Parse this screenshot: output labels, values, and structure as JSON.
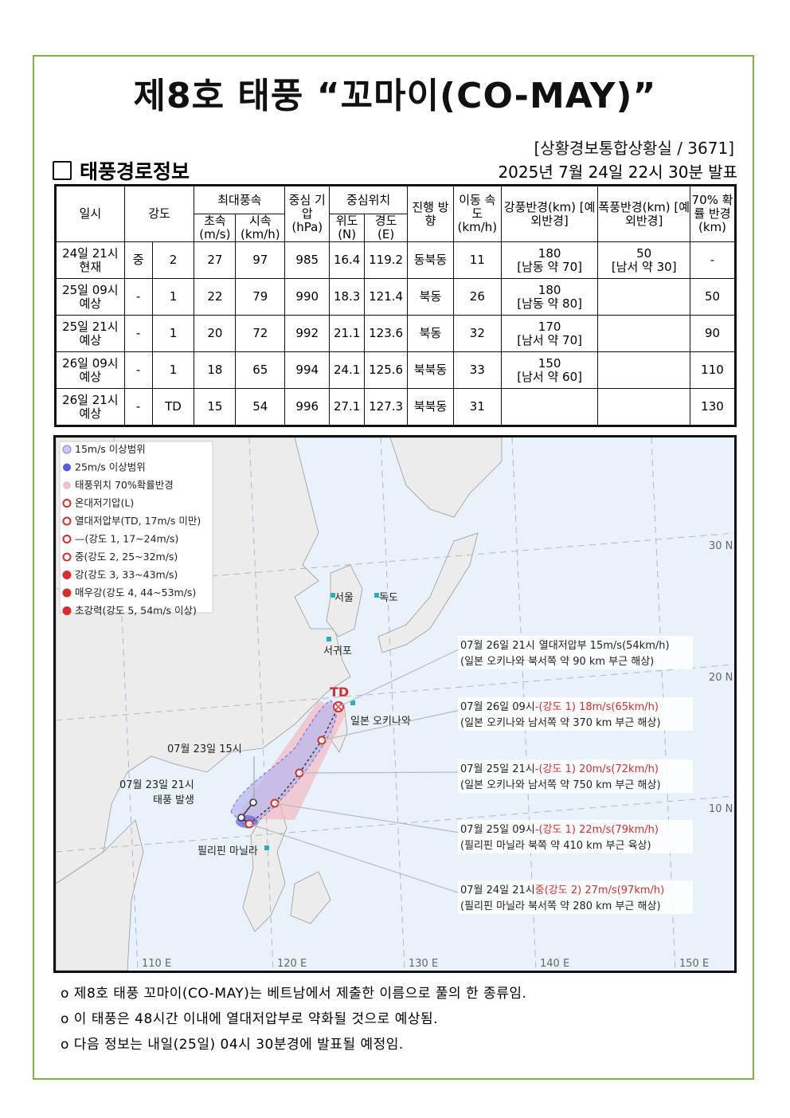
{
  "title": "제8호 태풍 “꼬마이(CO-MAY)”",
  "office": "[상황경보통합상황실 / 3671]",
  "section_title": "태풍경로정보",
  "issued": "2025년 7월 24일 22시 30분 발표",
  "table": {
    "headers": {
      "datetime": "일시",
      "intensity": "강도",
      "max_wind": "최대풍속",
      "wind_ms": "초속 (m/s)",
      "wind_kmh": "시속 (km/h)",
      "pressure": "중심 기압 (hPa)",
      "center": "중심위치",
      "lat": "위도 (N)",
      "lon": "경도 (E)",
      "direction": "진행 방향",
      "speed": "이동 속도 (km/h)",
      "strong_radius": "강풍반경(km) [예외반경]",
      "storm_radius": "폭풍반경(km) [예외반경]",
      "prob_radius": "70% 확률 반경 (km)"
    },
    "rows": [
      {
        "datetime": "24일 21시",
        "status": "현재",
        "intensity": "중",
        "grade": "2",
        "ms": "27",
        "kmh": "97",
        "hpa": "985",
        "lat": "16.4",
        "lon": "119.2",
        "dir": "동북동",
        "speed": "11",
        "strong": "180",
        "strong_ex": "[남동 약 70]",
        "storm": "50",
        "storm_ex": "[남서 약 30]",
        "prob": "-"
      },
      {
        "datetime": "25일 09시",
        "status": "예상",
        "intensity": "-",
        "grade": "1",
        "ms": "22",
        "kmh": "79",
        "hpa": "990",
        "lat": "18.3",
        "lon": "121.4",
        "dir": "북동",
        "speed": "26",
        "strong": "180",
        "strong_ex": "[남동 약 80]",
        "storm": "",
        "storm_ex": "",
        "prob": "50"
      },
      {
        "datetime": "25일 21시",
        "status": "예상",
        "intensity": "-",
        "grade": "1",
        "ms": "20",
        "kmh": "72",
        "hpa": "992",
        "lat": "21.1",
        "lon": "123.6",
        "dir": "북동",
        "speed": "32",
        "strong": "170",
        "strong_ex": "[남서 약 70]",
        "storm": "",
        "storm_ex": "",
        "prob": "90"
      },
      {
        "datetime": "26일 09시",
        "status": "예상",
        "intensity": "-",
        "grade": "1",
        "ms": "18",
        "kmh": "65",
        "hpa": "994",
        "lat": "24.1",
        "lon": "125.6",
        "dir": "북북동",
        "speed": "33",
        "strong": "150",
        "strong_ex": "[남서 약 60]",
        "storm": "",
        "storm_ex": "",
        "prob": "110"
      },
      {
        "datetime": "26일 21시",
        "status": "예상",
        "intensity": "-",
        "grade": "TD",
        "ms": "15",
        "kmh": "54",
        "hpa": "996",
        "lat": "27.1",
        "lon": "127.3",
        "dir": "북북동",
        "speed": "31",
        "strong": "",
        "strong_ex": "",
        "storm": "",
        "storm_ex": "",
        "prob": "130"
      }
    ]
  },
  "map": {
    "legend": [
      "15m/s 이상범위",
      "25m/s 이상범위",
      "태풍위치 70%확률반경",
      "온대저기압(L)",
      "열대저압부(TD, 17m/s 미만)",
      "—(강도 1, 17~24m/s)",
      "중(강도 2, 25~32m/s)",
      "강(강도 3, 33~43m/s)",
      "매우강(강도 4, 44~53m/s)",
      "초강력(강도 5, 54m/s 이상)"
    ],
    "lon_labels": [
      "110 E",
      "120 E",
      "130 E",
      "140 E",
      "150 E"
    ],
    "lat_labels": [
      "30 N",
      "20 N",
      "10 N"
    ],
    "places": {
      "seoul": "서울",
      "dokdo": "독도",
      "seogwipo": "서귀포",
      "okinawa": "일본 오키나와",
      "manila": "필리핀 마닐라"
    },
    "td_label": "TD",
    "history": {
      "a": "07월 23일 15시",
      "b": "07월 23일 21시",
      "c": "태풍 발생"
    },
    "annotations": [
      {
        "time": "07월 26일 21시",
        "state": "열대저압부 15m/s(54km/h)",
        "state_red": "",
        "loc": "(일본 오키나와 북서쪽 약 90 km 부근 해상)"
      },
      {
        "time": "07월 26일 09시",
        "state": "",
        "state_red": "-(강도 1) 18m/s(65km/h)",
        "loc": "(일본 오키나와 남서쪽 약 370 km 부근 해상)"
      },
      {
        "time": "07월 25일 21시",
        "state": "",
        "state_red": "-(강도 1) 20m/s(72km/h)",
        "loc": "(일본 오키나와 남서쪽 약 750 km 부근 해상)"
      },
      {
        "time": "07월 25일 09시",
        "state": "",
        "state_red": "-(강도 1) 22m/s(79km/h)",
        "loc": "(필리핀 마닐라 북쪽 약 410 km 부근 육상)"
      },
      {
        "time": "07월 24일 21시",
        "state": "",
        "state_red": "중(강도 2) 27m/s(97km/h)",
        "loc": "(필리핀 마닐라 북서쪽 약 280 km 부근 해상)"
      }
    ],
    "colors": {
      "sea": "#e9f1fb",
      "land": "#ececec",
      "track": "#d32f2f",
      "radius15": "#b8b8f0",
      "radius25": "#6f6fdc",
      "prob": "#f2b9c0"
    }
  },
  "notes": [
    "o 제8호 태풍 꼬마이(CO-MAY)는 베트남에서 제출한 이름으로 풀의 한 종류임.",
    "o 이 태풍은 48시간 이내에 열대저압부로 약화될 것으로 예상됨.",
    "o 다음 정보는 내일(25일) 04시 30분경에 발표될 예정임."
  ]
}
